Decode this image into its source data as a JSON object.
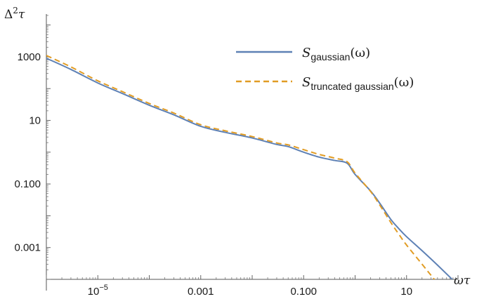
{
  "chart_data": {
    "type": "line",
    "x_scale": "log",
    "y_scale": "log",
    "xlabel": "ωτ",
    "ylabel": "Δ²τ",
    "ylabel_parts": {
      "base": "Δ",
      "sup": "2",
      "tail": "τ"
    },
    "xlim": [
      1e-06,
      100
    ],
    "ylim": [
      0.0001,
      30000
    ],
    "x_ticks": [
      {
        "value": 1e-05,
        "base": "10",
        "sup": "−5"
      },
      {
        "value": 0.001,
        "label": "0.001"
      },
      {
        "value": 0.1,
        "label": "0.100"
      },
      {
        "value": 10,
        "label": "10"
      }
    ],
    "y_ticks": [
      {
        "value": 0.001,
        "label": "0.001"
      },
      {
        "value": 0.1,
        "label": "0.100"
      },
      {
        "value": 10,
        "label": "10"
      },
      {
        "value": 1000,
        "label": "1000"
      }
    ],
    "legend_position": "top-right",
    "series": [
      {
        "name": "S_gaussian(ω)",
        "legend": {
          "main": "S",
          "sub": "gaussian",
          "tail": "(ω)"
        },
        "color": "#5e81b5",
        "dash": "solid",
        "x": [
          1e-06,
          3e-06,
          1e-05,
          3e-05,
          0.0001,
          0.0003,
          0.001,
          0.003,
          0.01,
          0.03,
          0.05,
          0.1,
          0.2,
          0.4,
          0.7,
          1,
          2,
          3,
          5,
          7,
          10,
          20,
          40,
          100
        ],
        "y": [
          900,
          400,
          150,
          70,
          30,
          15,
          6.5,
          4.2,
          2.8,
          1.75,
          1.5,
          1.0,
          0.7,
          0.55,
          0.45,
          0.2,
          0.06,
          0.025,
          0.0075,
          0.004,
          0.0022,
          0.0008,
          0.00028,
          6.6e-05
        ]
      },
      {
        "name": "S_truncated gaussian(ω)",
        "legend": {
          "main": "S",
          "sub": "truncated gaussian",
          "tail": "(ω)"
        },
        "color": "#e19c24",
        "dash": "dashed",
        "x": [
          1e-06,
          3e-06,
          1e-05,
          3e-05,
          0.0001,
          0.0003,
          0.001,
          0.003,
          0.01,
          0.03,
          0.05,
          0.1,
          0.2,
          0.4,
          0.7,
          1,
          2,
          3,
          5,
          7,
          10,
          20,
          40,
          100
        ],
        "y": [
          1100,
          480,
          175,
          80,
          34,
          17,
          7.3,
          4.7,
          3.1,
          1.95,
          1.7,
          1.2,
          0.85,
          0.65,
          0.5,
          0.22,
          0.058,
          0.022,
          0.006,
          0.0027,
          0.0012,
          0.0003,
          7.5e-05,
          1.2e-05
        ]
      }
    ]
  }
}
